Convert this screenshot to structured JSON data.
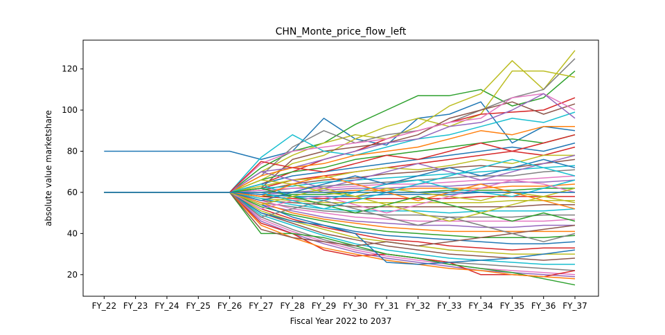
{
  "chart_data": {
    "type": "line",
    "title": "CHN_Monte_price_flow_left",
    "xlabel": "Fiscal Year 2022 to 2037",
    "ylabel": "absolute value marketshare",
    "categories": [
      "FY_22",
      "FY_23",
      "FY_24",
      "FY_25",
      "FY_26",
      "FY_27",
      "FY_28",
      "FY_29",
      "FY_30",
      "FY_31",
      "FY_32",
      "FY_33",
      "FY_34",
      "FY_35",
      "FY_36",
      "FY_37"
    ],
    "ylim": [
      9.5,
      134
    ],
    "yticks": [
      20,
      40,
      60,
      80,
      100,
      120
    ],
    "grid": false,
    "legend": "none",
    "series": [
      {
        "color": "#1f77b4",
        "values": [
          80,
          80,
          80,
          80,
          80,
          76,
          80,
          96,
          86,
          83,
          96,
          98,
          104,
          84,
          92,
          90
        ]
      },
      {
        "color": "#2ca02c",
        "values": [
          60,
          60,
          60,
          60,
          60,
          72,
          80,
          84,
          93,
          100,
          107,
          107,
          110,
          102,
          106,
          119
        ]
      },
      {
        "color": "#bcbd22",
        "values": [
          60,
          60,
          60,
          60,
          60,
          70,
          78,
          84,
          88,
          86,
          92,
          102,
          108,
          124,
          110,
          129
        ]
      },
      {
        "color": "#7f7f7f",
        "values": [
          60,
          60,
          60,
          60,
          60,
          68,
          82,
          90,
          84,
          88,
          90,
          94,
          100,
          106,
          110,
          125
        ]
      },
      {
        "color": "#bcbd22",
        "values": [
          60,
          60,
          60,
          60,
          60,
          66,
          74,
          78,
          86,
          92,
          96,
          92,
          98,
          119,
          119,
          116
        ]
      },
      {
        "color": "#d62728",
        "values": [
          60,
          60,
          60,
          60,
          60,
          64,
          70,
          76,
          80,
          86,
          90,
          94,
          98,
          99,
          100,
          106
        ]
      },
      {
        "color": "#8c564b",
        "values": [
          60,
          60,
          60,
          60,
          60,
          62,
          76,
          80,
          82,
          84,
          88,
          96,
          100,
          104,
          98,
          103
        ]
      },
      {
        "color": "#17becf",
        "values": [
          60,
          60,
          60,
          60,
          60,
          77,
          88,
          80,
          78,
          82,
          86,
          88,
          92,
          96,
          94,
          99
        ]
      },
      {
        "color": "#e377c2",
        "values": [
          60,
          60,
          60,
          60,
          60,
          74,
          80,
          82,
          84,
          86,
          90,
          94,
          96,
          106,
          108,
          100
        ]
      },
      {
        "color": "#9467bd",
        "values": [
          60,
          60,
          60,
          60,
          60,
          70,
          72,
          76,
          80,
          84,
          86,
          92,
          94,
          100,
          108,
          96
        ]
      },
      {
        "color": "#ff7f0e",
        "values": [
          60,
          60,
          60,
          60,
          60,
          68,
          72,
          74,
          78,
          80,
          82,
          86,
          90,
          88,
          92,
          92
        ]
      },
      {
        "color": "#2ca02c",
        "values": [
          60,
          60,
          60,
          60,
          60,
          66,
          70,
          72,
          76,
          78,
          80,
          82,
          84,
          86,
          84,
          88
        ]
      },
      {
        "color": "#1f77b4",
        "values": [
          60,
          60,
          60,
          60,
          60,
          64,
          68,
          70,
          72,
          74,
          76,
          78,
          80,
          82,
          80,
          84
        ]
      },
      {
        "color": "#d62728",
        "values": [
          60,
          60,
          60,
          60,
          60,
          62,
          66,
          68,
          70,
          72,
          74,
          76,
          78,
          80,
          78,
          82
        ]
      },
      {
        "color": "#bcbd22",
        "values": [
          60,
          60,
          60,
          60,
          60,
          63,
          66,
          67,
          70,
          72,
          71,
          73,
          76,
          74,
          78,
          78
        ]
      },
      {
        "color": "#8c564b",
        "values": [
          60,
          60,
          60,
          60,
          60,
          61,
          64,
          66,
          67,
          69,
          70,
          72,
          73,
          72,
          74,
          76
        ]
      },
      {
        "color": "#17becf",
        "values": [
          60,
          60,
          60,
          60,
          60,
          62,
          63,
          65,
          66,
          67,
          68,
          69,
          70,
          71,
          72,
          73
        ]
      },
      {
        "color": "#7f7f7f",
        "values": [
          60,
          60,
          60,
          60,
          60,
          60,
          62,
          63,
          64,
          65,
          66,
          67,
          68,
          68,
          70,
          71
        ]
      },
      {
        "color": "#e377c2",
        "values": [
          60,
          60,
          60,
          60,
          60,
          61,
          62,
          62,
          63,
          64,
          64,
          65,
          66,
          66,
          67,
          68
        ]
      },
      {
        "color": "#9467bd",
        "values": [
          60,
          60,
          60,
          60,
          60,
          59,
          60,
          61,
          62,
          62,
          63,
          63,
          64,
          65,
          65,
          66
        ]
      },
      {
        "color": "#ff7f0e",
        "values": [
          60,
          60,
          60,
          60,
          60,
          60,
          60,
          60,
          61,
          61,
          62,
          62,
          62,
          63,
          63,
          64
        ]
      },
      {
        "color": "#2ca02c",
        "values": [
          60,
          60,
          60,
          60,
          60,
          58,
          59,
          59,
          60,
          60,
          60,
          61,
          61,
          61,
          62,
          62
        ]
      },
      {
        "color": "#1f77b4",
        "values": [
          60,
          60,
          60,
          60,
          60,
          59,
          58,
          58,
          58,
          59,
          59,
          59,
          60,
          60,
          60,
          60
        ]
      },
      {
        "color": "#d62728",
        "values": [
          60,
          60,
          60,
          60,
          60,
          58,
          57,
          57,
          57,
          57,
          57,
          57,
          58,
          58,
          58,
          58
        ]
      },
      {
        "color": "#bcbd22",
        "values": [
          60,
          60,
          60,
          60,
          60,
          57,
          56,
          55,
          55,
          55,
          55,
          55,
          55,
          56,
          56,
          56
        ]
      },
      {
        "color": "#8c564b",
        "values": [
          60,
          60,
          60,
          60,
          60,
          56,
          55,
          54,
          53,
          53,
          53,
          53,
          53,
          53,
          54,
          54
        ]
      },
      {
        "color": "#17becf",
        "values": [
          60,
          60,
          60,
          60,
          60,
          57,
          54,
          52,
          51,
          51,
          51,
          50,
          51,
          51,
          51,
          52
        ]
      },
      {
        "color": "#7f7f7f",
        "values": [
          60,
          60,
          60,
          60,
          60,
          55,
          53,
          51,
          50,
          49,
          49,
          48,
          48,
          48,
          49,
          49
        ]
      },
      {
        "color": "#e377c2",
        "values": [
          60,
          60,
          60,
          60,
          60,
          56,
          52,
          50,
          48,
          47,
          46,
          46,
          46,
          46,
          46,
          47
        ]
      },
      {
        "color": "#9467bd",
        "values": [
          60,
          60,
          60,
          60,
          60,
          54,
          51,
          48,
          46,
          45,
          44,
          44,
          43,
          43,
          44,
          44
        ]
      },
      {
        "color": "#ff7f0e",
        "values": [
          60,
          60,
          60,
          60,
          60,
          55,
          50,
          47,
          45,
          43,
          42,
          41,
          41,
          41,
          41,
          41
        ]
      },
      {
        "color": "#2ca02c",
        "values": [
          60,
          60,
          60,
          60,
          60,
          53,
          49,
          46,
          43,
          41,
          40,
          39,
          38,
          38,
          38,
          39
        ]
      },
      {
        "color": "#1f77b4",
        "values": [
          60,
          60,
          60,
          60,
          60,
          54,
          48,
          44,
          41,
          39,
          38,
          37,
          36,
          35,
          35,
          36
        ]
      },
      {
        "color": "#d62728",
        "values": [
          60,
          60,
          60,
          60,
          60,
          52,
          47,
          43,
          40,
          37,
          36,
          34,
          33,
          32,
          33,
          33
        ]
      },
      {
        "color": "#bcbd22",
        "values": [
          60,
          60,
          60,
          60,
          60,
          51,
          46,
          42,
          38,
          36,
          34,
          32,
          31,
          30,
          30,
          30
        ]
      },
      {
        "color": "#8c564b",
        "values": [
          60,
          60,
          60,
          60,
          60,
          50,
          45,
          40,
          37,
          34,
          32,
          30,
          29,
          28,
          27,
          28
        ]
      },
      {
        "color": "#17becf",
        "values": [
          60,
          60,
          60,
          60,
          60,
          49,
          44,
          39,
          35,
          32,
          30,
          28,
          27,
          26,
          25,
          25
        ]
      },
      {
        "color": "#7f7f7f",
        "values": [
          60,
          60,
          60,
          60,
          60,
          48,
          42,
          37,
          33,
          30,
          28,
          26,
          25,
          24,
          23,
          22
        ]
      },
      {
        "color": "#e377c2",
        "values": [
          60,
          60,
          60,
          60,
          60,
          47,
          41,
          36,
          32,
          29,
          27,
          25,
          23,
          22,
          21,
          20
        ]
      },
      {
        "color": "#9467bd",
        "values": [
          60,
          60,
          60,
          60,
          60,
          46,
          40,
          35,
          31,
          28,
          26,
          24,
          22,
          21,
          20,
          19
        ]
      },
      {
        "color": "#d62728",
        "values": [
          60,
          60,
          60,
          60,
          60,
          45,
          40,
          32,
          29,
          30,
          28,
          26,
          20,
          20,
          19,
          22
        ]
      },
      {
        "color": "#2ca02c",
        "values": [
          60,
          60,
          60,
          60,
          60,
          40,
          40,
          38,
          34,
          30,
          28,
          25,
          23,
          21,
          18,
          15
        ]
      },
      {
        "color": "#ff7f0e",
        "values": [
          60,
          60,
          60,
          60,
          60,
          44,
          38,
          33,
          30,
          27,
          25,
          23,
          22,
          20,
          19,
          18
        ]
      },
      {
        "color": "#1f77b4",
        "values": [
          60,
          60,
          60,
          60,
          60,
          50,
          46,
          44,
          40,
          26,
          25,
          26,
          27,
          28,
          30,
          32
        ]
      },
      {
        "color": "#bcbd22",
        "values": [
          60,
          60,
          60,
          60,
          60,
          66,
          64,
          60,
          58,
          62,
          60,
          58,
          56,
          60,
          58,
          55
        ]
      },
      {
        "color": "#8c564b",
        "values": [
          60,
          60,
          60,
          60,
          60,
          42,
          38,
          36,
          34,
          36,
          34,
          36,
          38,
          40,
          42,
          44
        ]
      },
      {
        "color": "#17becf",
        "values": [
          60,
          60,
          60,
          60,
          60,
          64,
          58,
          56,
          60,
          64,
          66,
          62,
          60,
          58,
          62,
          66
        ]
      },
      {
        "color": "#e377c2",
        "values": [
          60,
          60,
          60,
          60,
          60,
          52,
          56,
          58,
          54,
          50,
          54,
          58,
          62,
          66,
          64,
          60
        ]
      },
      {
        "color": "#9467bd",
        "values": [
          60,
          60,
          60,
          60,
          60,
          70,
          66,
          62,
          66,
          70,
          74,
          70,
          66,
          70,
          74,
          78
        ]
      },
      {
        "color": "#ff7f0e",
        "values": [
          60,
          60,
          60,
          60,
          60,
          58,
          64,
          68,
          64,
          60,
          56,
          60,
          64,
          60,
          56,
          52
        ]
      },
      {
        "color": "#2ca02c",
        "values": [
          60,
          60,
          60,
          60,
          60,
          62,
          58,
          54,
          50,
          54,
          58,
          54,
          50,
          46,
          50,
          46
        ]
      },
      {
        "color": "#1f77b4",
        "values": [
          60,
          60,
          60,
          60,
          60,
          56,
          60,
          64,
          68,
          64,
          68,
          72,
          68,
          72,
          76,
          72
        ]
      },
      {
        "color": "#d62728",
        "values": [
          60,
          60,
          60,
          60,
          60,
          75,
          72,
          70,
          74,
          78,
          76,
          80,
          84,
          80,
          84,
          88
        ]
      },
      {
        "color": "#7f7f7f",
        "values": [
          60,
          60,
          60,
          60,
          60,
          48,
          52,
          56,
          52,
          48,
          44,
          48,
          44,
          40,
          36,
          40
        ]
      },
      {
        "color": "#bcbd22",
        "values": [
          60,
          60,
          60,
          60,
          60,
          54,
          58,
          62,
          58,
          54,
          50,
          46,
          50,
          54,
          58,
          62
        ]
      },
      {
        "color": "#17becf",
        "values": [
          60,
          60,
          60,
          60,
          60,
          60,
          56,
          52,
          56,
          60,
          64,
          68,
          72,
          76,
          72,
          68
        ]
      }
    ],
    "reference_series": {
      "color": "#1f77b4",
      "values": [
        60,
        60,
        60,
        60,
        60,
        60,
        60,
        60,
        60,
        60,
        60,
        60,
        60,
        60,
        60,
        60
      ]
    }
  }
}
